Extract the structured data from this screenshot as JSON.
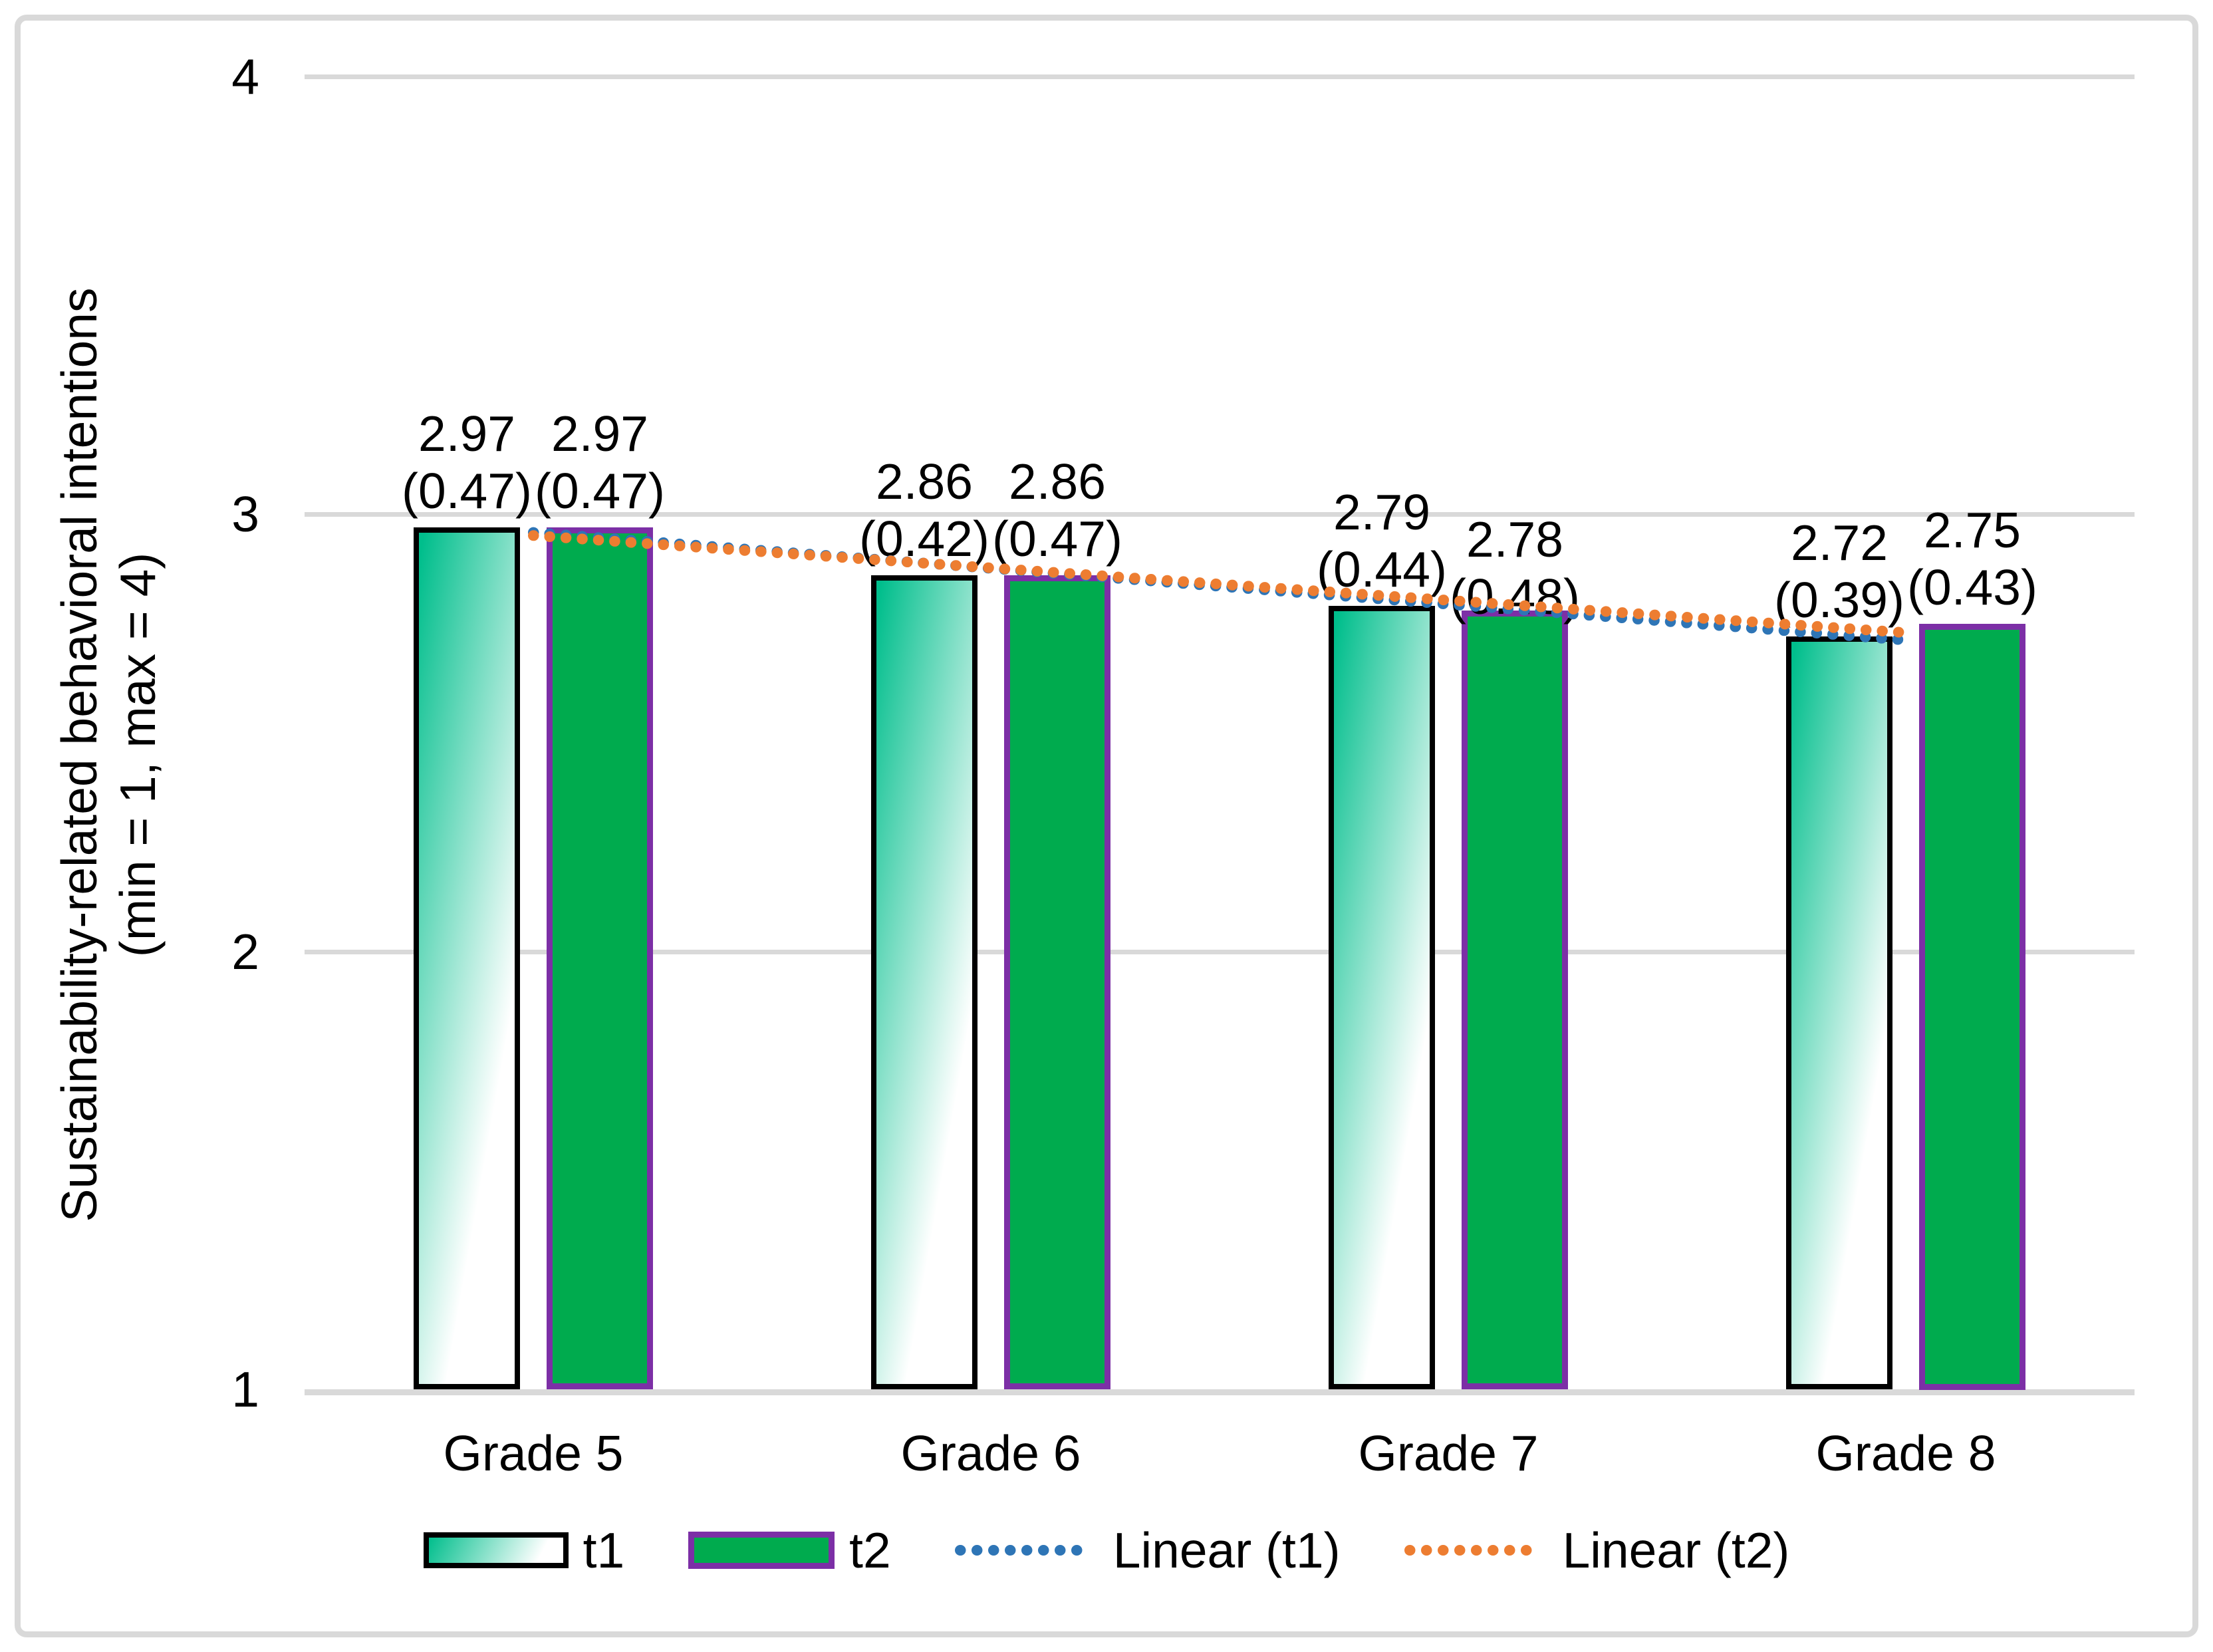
{
  "chart_data": {
    "type": "bar",
    "title": "",
    "categories": [
      "Grade 5",
      "Grade 6",
      "Grade 7",
      "Grade 8"
    ],
    "series": [
      {
        "name": "t1",
        "values": [
          2.97,
          2.86,
          2.79,
          2.72
        ],
        "value_labels": [
          "2.97",
          "2.86",
          "2.79",
          "2.72"
        ],
        "sd_labels": [
          "(0.47)",
          "(0.42)",
          "(0.44)",
          "(0.39)"
        ],
        "label_y_offsets": [
          0,
          0,
          0,
          0
        ],
        "fill": "gradient-green-to-white",
        "border_color": "#000000"
      },
      {
        "name": "t2",
        "values": [
          2.97,
          2.86,
          2.78,
          2.75
        ],
        "value_labels": [
          "2.97",
          "2.86",
          "2.78",
          "2.75"
        ],
        "sd_labels": [
          "(0.47)",
          "(0.47)",
          "(0.48)",
          "(0.43)"
        ],
        "label_y_offsets": [
          0,
          0,
          34,
          0
        ],
        "fill": "#00AB4E",
        "border_color": "#7C2FA6"
      }
    ],
    "trendlines": [
      {
        "name": "Linear (t1)",
        "color": "#2E75B6",
        "start_value": 2.958,
        "end_value": 2.712
      },
      {
        "name": "Linear (t2)",
        "color": "#ED7D31",
        "start_value": 2.951,
        "end_value": 2.729
      }
    ],
    "ylabel_line1": "Sustainability-related behavioral intentions",
    "ylabel_line2": "(min = 1, max = 4)",
    "xlabel": "",
    "ylim": [
      1,
      4
    ],
    "yticks": [
      1,
      2,
      3,
      4
    ],
    "grid": true,
    "legend_position": "bottom",
    "legend": {
      "t1": "t1",
      "t2": "t2",
      "linear_t1": "Linear (t1)",
      "linear_t2": "Linear (t2)"
    },
    "colors": {
      "t1_gradient_start": "#00BE8C",
      "t1_gradient_end": "#FFFFFF",
      "t1_border": "#000000",
      "t2_fill": "#00AB4E",
      "t2_border": "#7C2FA6",
      "linear_t1": "#2E75B6",
      "linear_t2": "#ED7D31",
      "gridline": "#D9D9D9",
      "frame_border": "#D9D9D9",
      "text": "#000000"
    }
  }
}
